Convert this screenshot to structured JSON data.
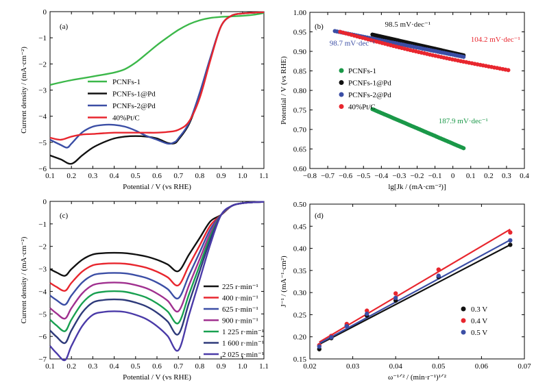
{
  "chart_data": [
    {
      "panel": "(a)",
      "type": "line",
      "xlabel": "Potential / V (vs RHE)",
      "ylabel": "Current density / (mA·cm⁻²)",
      "xlim": [
        0.1,
        1.1
      ],
      "ylim": [
        -6,
        0
      ],
      "xticks": [
        "0.1",
        "0.2",
        "0.3",
        "0.4",
        "0.5",
        "0.6",
        "0.7",
        "0.8",
        "0.9",
        "1.0",
        "1.1"
      ],
      "yticks": [
        "−6",
        "−5",
        "−4",
        "−3",
        "−2",
        "−1",
        "0"
      ],
      "legend_position": "center-left",
      "series": [
        {
          "name": "PCNFs-1",
          "color": "#3cb84a",
          "x": [
            0.1,
            0.2,
            0.3,
            0.4,
            0.45,
            0.5,
            0.55,
            0.6,
            0.65,
            0.7,
            0.75,
            0.8,
            0.85,
            0.9,
            0.95,
            1.0,
            1.05,
            1.1
          ],
          "y": [
            -2.8,
            -2.62,
            -2.48,
            -2.33,
            -2.2,
            -1.95,
            -1.62,
            -1.28,
            -0.98,
            -0.7,
            -0.48,
            -0.33,
            -0.24,
            -0.2,
            -0.18,
            -0.16,
            -0.12,
            -0.05
          ]
        },
        {
          "name": "PCNFs-1@Pd",
          "color": "#111111",
          "x": [
            0.1,
            0.15,
            0.2,
            0.25,
            0.3,
            0.35,
            0.4,
            0.45,
            0.5,
            0.55,
            0.6,
            0.65,
            0.68,
            0.7,
            0.75,
            0.8,
            0.85,
            0.9,
            0.95,
            1.0,
            1.05,
            1.1
          ],
          "y": [
            -5.5,
            -5.65,
            -5.82,
            -5.5,
            -5.2,
            -5.0,
            -4.85,
            -4.78,
            -4.76,
            -4.78,
            -4.85,
            -5.02,
            -5.04,
            -4.9,
            -4.3,
            -3.2,
            -1.8,
            -0.55,
            -0.15,
            -0.07,
            -0.04,
            -0.02
          ]
        },
        {
          "name": "PCNFs-2@Pd",
          "color": "#3b4ea5",
          "x": [
            0.1,
            0.15,
            0.18,
            0.2,
            0.25,
            0.3,
            0.35,
            0.4,
            0.45,
            0.5,
            0.55,
            0.6,
            0.65,
            0.68,
            0.7,
            0.75,
            0.8,
            0.85,
            0.9,
            0.95,
            1.0,
            1.05,
            1.1
          ],
          "y": [
            -4.9,
            -5.1,
            -5.2,
            -5.05,
            -4.62,
            -4.4,
            -4.33,
            -4.33,
            -4.4,
            -4.55,
            -4.75,
            -4.9,
            -5.05,
            -5.0,
            -4.85,
            -4.25,
            -3.1,
            -1.75,
            -0.55,
            -0.15,
            -0.07,
            -0.04,
            -0.02
          ]
        },
        {
          "name": "40%Pt/C",
          "color": "#e8262e",
          "x": [
            0.1,
            0.15,
            0.2,
            0.25,
            0.3,
            0.35,
            0.4,
            0.45,
            0.5,
            0.55,
            0.6,
            0.65,
            0.7,
            0.75,
            0.8,
            0.85,
            0.9,
            0.95,
            1.0,
            1.05,
            1.1
          ],
          "y": [
            -4.82,
            -4.9,
            -4.78,
            -4.7,
            -4.68,
            -4.65,
            -4.63,
            -4.63,
            -4.63,
            -4.63,
            -4.63,
            -4.6,
            -4.52,
            -4.2,
            -3.3,
            -1.85,
            -0.55,
            -0.15,
            -0.07,
            -0.04,
            -0.02
          ]
        }
      ]
    },
    {
      "panel": "(b)",
      "type": "scatter",
      "xlabel": "lg[Jk / (mA·cm⁻²)]",
      "ylabel": "Potential / V (vs RHE)",
      "xlim": [
        -0.8,
        0.4
      ],
      "ylim": [
        0.6,
        1.0
      ],
      "xticks": [
        "−0.8",
        "−0.7",
        "−0.6",
        "−0.5",
        "−0.4",
        "−0.3",
        "−0.2",
        "−0.1",
        "0",
        "0.1",
        "0.2",
        "0.3",
        "0.4"
      ],
      "yticks": [
        "0.60",
        "0.65",
        "0.70",
        "0.75",
        "0.80",
        "0.85",
        "0.90",
        "0.95",
        "1.00"
      ],
      "legend_position": "center",
      "annotations": [
        {
          "text": "98.5 mV·dec⁻¹",
          "color": "#111111",
          "x": -0.38,
          "y": 0.963
        },
        {
          "text": "104.2 mV·dec⁻¹",
          "color": "#e8262e",
          "x": 0.1,
          "y": 0.925
        },
        {
          "text": "98.7 mV·dec⁻¹",
          "color": "#3b4ea5",
          "x": -0.69,
          "y": 0.915
        },
        {
          "text": "187.9 mV·dec⁻¹",
          "color": "#1a9848",
          "x": -0.08,
          "y": 0.716
        }
      ],
      "series": [
        {
          "name": "PCNFs-1",
          "color": "#1a9848",
          "x_start": -0.45,
          "x_end": 0.06,
          "y_start": 0.752,
          "y_end": 0.652
        },
        {
          "name": "PCNFs-1@Pd",
          "color": "#111111",
          "x_start": -0.45,
          "x_end": 0.06,
          "y_start": 0.943,
          "y_end": 0.89
        },
        {
          "name": "PCNFs-2@Pd",
          "color": "#3b4ea5",
          "x_start": -0.66,
          "x_end": 0.06,
          "y_start": 0.952,
          "y_end": 0.886
        },
        {
          "name": "40%Pt/C",
          "color": "#e8262e",
          "x_start": -0.63,
          "x_end": 0.31,
          "y_start": 0.95,
          "y_end": 0.852
        }
      ]
    },
    {
      "panel": "(c)",
      "type": "line",
      "xlabel": "Potential / V (vs RHE)",
      "ylabel": "Current density / (mA·cm⁻²)",
      "xlim": [
        0.1,
        1.1
      ],
      "ylim": [
        -7,
        0
      ],
      "xticks": [
        "0.1",
        "0.2",
        "0.3",
        "0.4",
        "0.5",
        "0.6",
        "0.7",
        "0.8",
        "0.9",
        "1.0",
        "1.1"
      ],
      "yticks": [
        "−7",
        "−6",
        "−5",
        "−4",
        "−3",
        "−2",
        "−1",
        "0"
      ],
      "legend_position": "center-right",
      "series": [
        {
          "name": "225 r·min⁻¹",
          "color": "#111111",
          "base": 2.95
        },
        {
          "name": "400 r·min⁻¹",
          "color": "#e8262e",
          "base": 3.55
        },
        {
          "name": "625 r·min⁻¹",
          "color": "#3b4ea5",
          "base": 4.1
        },
        {
          "name": "900 r·min⁻¹",
          "color": "#a0308f",
          "base": 4.65
        },
        {
          "name": "1 225 r·min⁻¹",
          "color": "#18a050",
          "base": 5.15
        },
        {
          "name": "1 600 r·min⁻¹",
          "color": "#2e3a7a",
          "base": 5.62
        },
        {
          "name": "2 025 r·min⁻¹",
          "color": "#4a3aa8",
          "base": 6.3
        }
      ]
    },
    {
      "panel": "(d)",
      "type": "scatter",
      "xlabel": "ω⁻¹ᐟ² / (min·r⁻¹)¹ᐟ²",
      "ylabel": "J⁻¹ / (mA⁻¹·cm²)",
      "xlim": [
        0.02,
        0.07
      ],
      "ylim": [
        0.15,
        0.5
      ],
      "xticks": [
        "0.02",
        "0.03",
        "0.04",
        "0.05",
        "0.06",
        "0.07"
      ],
      "yticks": [
        "0.15",
        "0.20",
        "0.25",
        "0.30",
        "0.35",
        "0.40",
        "0.45",
        "0.50"
      ],
      "legend_position": "lower-right",
      "series": [
        {
          "name": "0.3 V",
          "color": "#111111",
          "x": [
            0.0222,
            0.025,
            0.0286,
            0.0333,
            0.04,
            0.05,
            0.0667
          ],
          "y": [
            0.172,
            0.197,
            0.225,
            0.248,
            0.282,
            0.335,
            0.408
          ],
          "fit": [
            [
              0.0222,
              0.183
            ],
            [
              0.0667,
              0.408
            ]
          ]
        },
        {
          "name": "0.4 V",
          "color": "#e8262e",
          "x": [
            0.0222,
            0.025,
            0.0286,
            0.0333,
            0.04,
            0.05,
            0.0667
          ],
          "y": [
            0.181,
            0.202,
            0.229,
            0.259,
            0.298,
            0.352,
            0.436
          ],
          "fit": [
            [
              0.0222,
              0.188
            ],
            [
              0.0667,
              0.443
            ]
          ]
        },
        {
          "name": "0.5 V",
          "color": "#3b4ea5",
          "x": [
            0.0222,
            0.025,
            0.0286,
            0.0333,
            0.04,
            0.05,
            0.0667
          ],
          "y": [
            0.178,
            0.199,
            0.224,
            0.252,
            0.288,
            0.338,
            0.418
          ],
          "fit": [
            [
              0.0222,
              0.185
            ],
            [
              0.0667,
              0.419
            ]
          ]
        }
      ]
    }
  ]
}
